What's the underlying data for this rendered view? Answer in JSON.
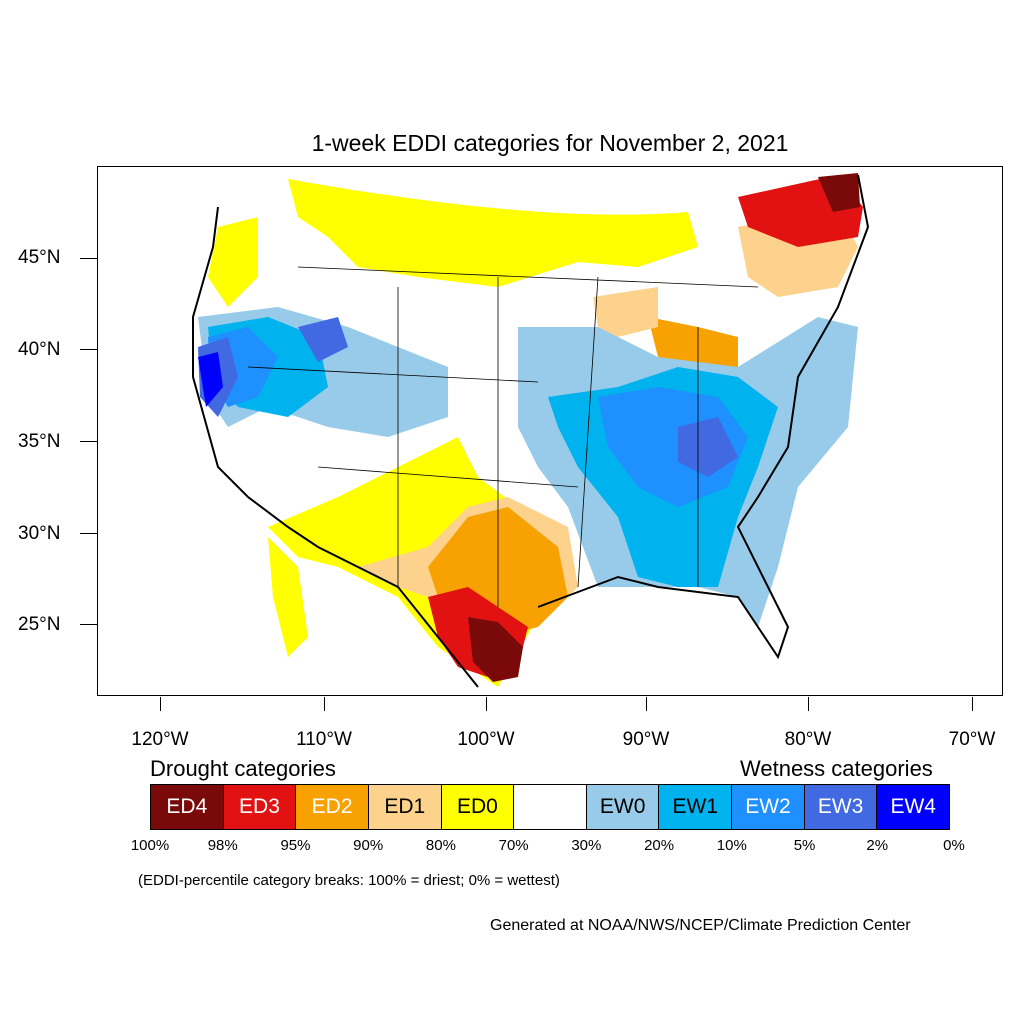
{
  "title": "1-week EDDI categories for November 2, 2021",
  "axes": {
    "lat_labels": [
      "45°N",
      "40°N",
      "35°N",
      "30°N",
      "25°N"
    ],
    "lon_labels": [
      "120°W",
      "110°W",
      "100°W",
      "90°W",
      "80°W",
      "70°W"
    ]
  },
  "legend": {
    "drought_heading": "Drought categories",
    "wetness_heading": "Wetness categories",
    "categories": [
      {
        "label": "ED4",
        "color": "#7a0a0a",
        "text_color": "#ffffff"
      },
      {
        "label": "ED3",
        "color": "#e21212",
        "text_color": "#ffffff"
      },
      {
        "label": "ED2",
        "color": "#f7a200",
        "text_color": "#ffffff"
      },
      {
        "label": "ED1",
        "color": "#fdd28c",
        "text_color": "#000000"
      },
      {
        "label": "ED0",
        "color": "#ffff00",
        "text_color": "#000000"
      },
      {
        "label": "",
        "color": "#ffffff",
        "text_color": "#000000"
      },
      {
        "label": "EW0",
        "color": "#97cbe9",
        "text_color": "#000000"
      },
      {
        "label": "EW1",
        "color": "#00b2ee",
        "text_color": "#000000"
      },
      {
        "label": "EW2",
        "color": "#1e90ff",
        "text_color": "#ffffff"
      },
      {
        "label": "EW3",
        "color": "#4169e1",
        "text_color": "#ffffff"
      },
      {
        "label": "EW4",
        "color": "#0000ff",
        "text_color": "#ffffff"
      }
    ],
    "percentiles": [
      "100%",
      "98%",
      "95%",
      "90%",
      "80%",
      "70%",
      "30%",
      "20%",
      "10%",
      "5%",
      "2%",
      "0%"
    ]
  },
  "note": "(EDDI-percentile category breaks: 100% = driest; 0% = wettest)",
  "credit": "Generated at NOAA/NWS/NCEP/Climate Prediction Center"
}
